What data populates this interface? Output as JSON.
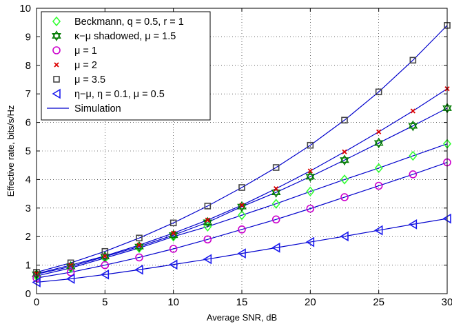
{
  "chart_data": {
    "type": "line",
    "title": "",
    "xlabel": "Average SNR, dB",
    "ylabel": "Effective rate, bits/s/Hz",
    "xlim": [
      0,
      30
    ],
    "ylim": [
      0,
      10
    ],
    "xticks": [
      0,
      5,
      10,
      15,
      20,
      25,
      30
    ],
    "yticks": [
      0,
      1,
      2,
      3,
      4,
      5,
      6,
      7,
      8,
      9,
      10
    ],
    "grid": true,
    "legend_position": "top-left",
    "x": [
      0,
      2.5,
      5,
      7.5,
      10,
      12.5,
      15,
      17.5,
      20,
      22.5,
      25,
      27.5,
      30
    ],
    "series": [
      {
        "name": "Beckmann, q = 0.5, r = 1",
        "marker": "diamond",
        "color": "#33ff33",
        "values": [
          0.62,
          0.9,
          1.25,
          1.6,
          2.0,
          2.35,
          2.75,
          3.15,
          3.58,
          4.0,
          4.4,
          4.83,
          5.25
        ]
      },
      {
        "name": "κ−μ shadowed, μ = 1.5",
        "marker": "hexagram",
        "color": "#007a00",
        "values": [
          0.68,
          0.95,
          1.3,
          1.65,
          2.05,
          2.5,
          3.05,
          3.55,
          4.1,
          4.68,
          5.28,
          5.88,
          6.5
        ]
      },
      {
        "name": "μ = 1",
        "marker": "circle",
        "color": "#cc00cc",
        "values": [
          0.55,
          0.75,
          1.0,
          1.27,
          1.57,
          1.9,
          2.25,
          2.6,
          2.98,
          3.38,
          3.78,
          4.18,
          4.6
        ]
      },
      {
        "name": "μ = 2",
        "marker": "x",
        "color": "#dd0000",
        "values": [
          0.7,
          1.0,
          1.32,
          1.7,
          2.12,
          2.58,
          3.1,
          3.68,
          4.3,
          4.97,
          5.67,
          6.4,
          7.18
        ]
      },
      {
        "name": "μ = 3.5",
        "marker": "square",
        "color": "#444444",
        "values": [
          0.75,
          1.08,
          1.48,
          1.95,
          2.48,
          3.07,
          3.72,
          4.42,
          5.2,
          6.08,
          7.07,
          8.18,
          9.4
        ]
      },
      {
        "name": "η−μ, η = 0.1, μ = 0.5",
        "marker": "triangle-left",
        "color": "#1a1aee",
        "values": [
          0.4,
          0.52,
          0.67,
          0.84,
          1.02,
          1.21,
          1.41,
          1.61,
          1.81,
          2.01,
          2.22,
          2.43,
          2.63
        ]
      }
    ],
    "simulation": {
      "name": "Simulation",
      "color": "#0000cc"
    }
  }
}
